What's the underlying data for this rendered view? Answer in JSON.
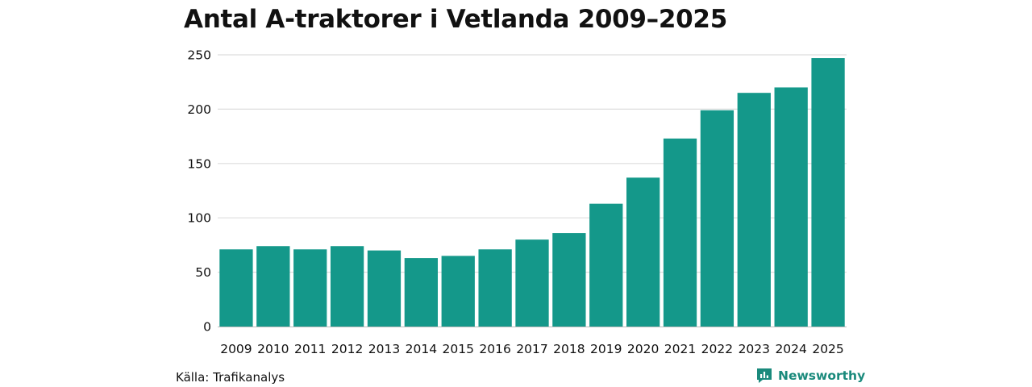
{
  "colors": {
    "bar": "#14988a",
    "grid": "#dddddd",
    "axis": "#bbbbbb",
    "brand": "#1a8a7c"
  },
  "footer": {
    "source": "Källa: Trafikanalys",
    "brand": "Newsworthy",
    "brand_icon": "newsworthy-logo-icon"
  },
  "chart_data": {
    "type": "bar",
    "title": "Antal A-traktorer i Vetlanda 2009–2025",
    "xlabel": "",
    "ylabel": "",
    "ylim": [
      0,
      250
    ],
    "yticks": [
      0,
      50,
      100,
      150,
      200,
      250
    ],
    "grid": true,
    "categories": [
      "2009",
      "2010",
      "2011",
      "2012",
      "2013",
      "2014",
      "2015",
      "2016",
      "2017",
      "2018",
      "2019",
      "2020",
      "2021",
      "2022",
      "2023",
      "2024",
      "2025"
    ],
    "values": [
      71,
      74,
      71,
      74,
      70,
      63,
      65,
      71,
      80,
      86,
      113,
      137,
      173,
      199,
      215,
      220,
      247
    ]
  }
}
